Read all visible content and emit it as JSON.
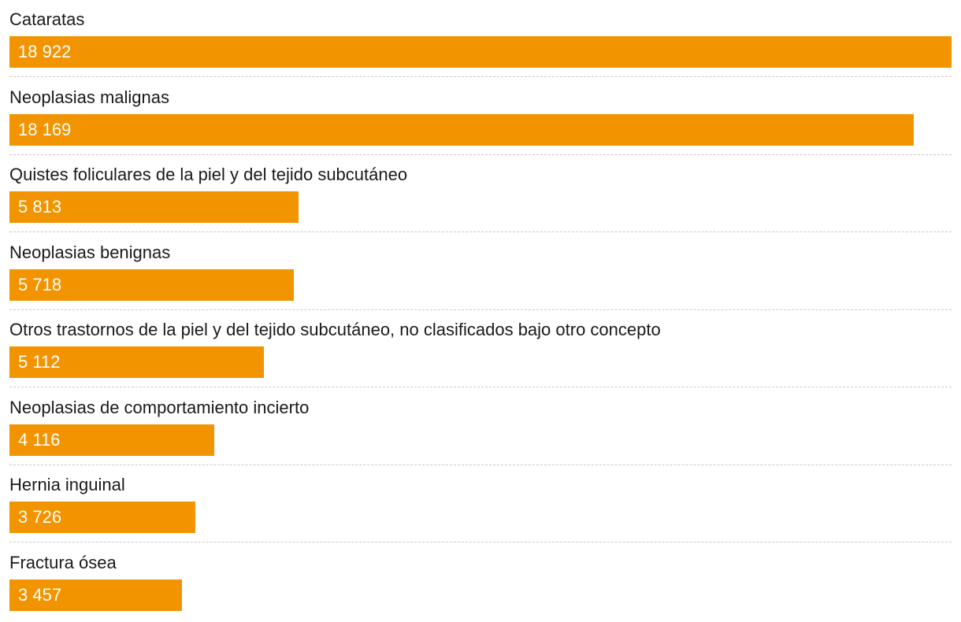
{
  "chart_data": {
    "type": "bar",
    "orientation": "horizontal",
    "categories": [
      "Cataratas",
      "Neoplasias malignas",
      "Quistes foliculares de la piel y del tejido subcutáneo",
      "Neoplasias benignas",
      "Otros trastornos de la piel y del tejido subcutáneo, no clasificados bajo otro concepto",
      "Neoplasias de comportamiento incierto",
      "Hernia inguinal",
      "Fractura ósea"
    ],
    "values": [
      18922,
      18169,
      5813,
      5718,
      5112,
      4116,
      3726,
      3457
    ],
    "value_labels": [
      "18 922",
      "18 169",
      "5 813",
      "5 718",
      "5 112",
      "4 116",
      "3 726",
      "3 457"
    ],
    "bar_color": "#f29400",
    "value_label_color": "#ffffff",
    "grid": false,
    "separators": "dashed"
  }
}
